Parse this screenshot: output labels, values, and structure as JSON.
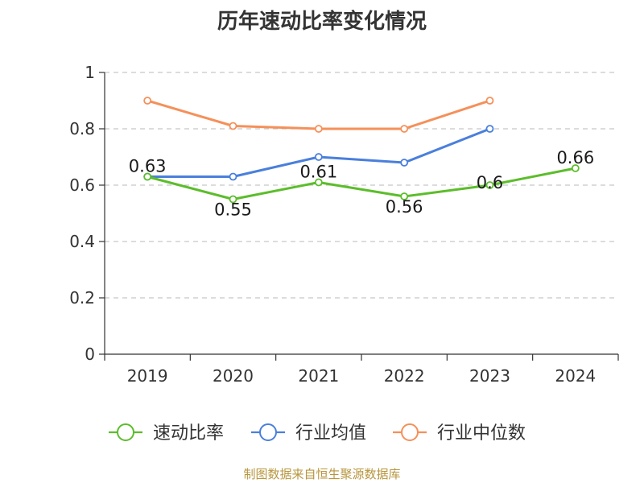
{
  "colors": {
    "series_green": "#5cbd2b",
    "series_blue": "#4a7fdc",
    "series_orange": "#f5905a",
    "grid": "#c8c8c8",
    "axis": "#333333",
    "source_text": "#b8963e"
  },
  "chart_data": {
    "type": "line",
    "title": "历年速动比率变化情况",
    "xlabel": "",
    "ylabel": "",
    "categories": [
      "2019",
      "2020",
      "2021",
      "2022",
      "2023",
      "2024"
    ],
    "ylim": [
      0,
      1
    ],
    "yticks": [
      "0",
      "0.2",
      "0.4",
      "0.6",
      "0.8",
      "1"
    ],
    "ytick_values": [
      0,
      0.2,
      0.4,
      0.6,
      0.8,
      1
    ],
    "grid": true,
    "legend_position": "bottom",
    "series": [
      {
        "name": "速动比率",
        "values": [
          0.63,
          0.55,
          0.61,
          0.56,
          0.6,
          0.66
        ],
        "labels": [
          "0.63",
          "0.55",
          "0.61",
          "0.56",
          "0.6",
          "0.66"
        ]
      },
      {
        "name": "行业均值",
        "values": [
          0.63,
          0.63,
          0.7,
          0.68,
          0.8,
          null
        ]
      },
      {
        "name": "行业中位数",
        "values": [
          0.9,
          0.81,
          0.8,
          0.8,
          0.9,
          null
        ]
      }
    ]
  },
  "source": "制图数据来自恒生聚源数据库"
}
